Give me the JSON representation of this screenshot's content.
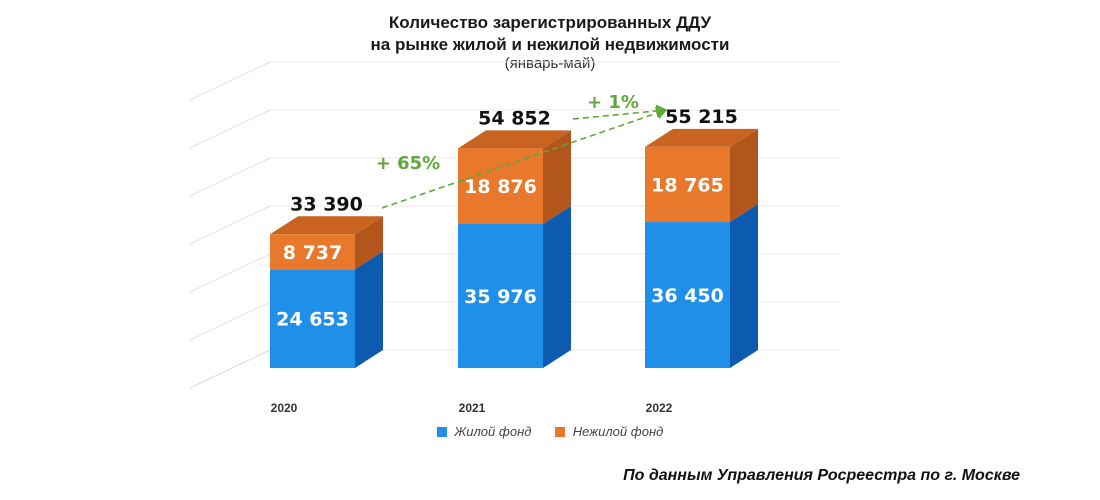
{
  "chart_data": {
    "type": "bar",
    "stacked": true,
    "title_line1": "Количество зарегистрированных ДДУ",
    "title_line2": "на рынке жилой и нежилой недвижимости",
    "subtitle": "(январь-май)",
    "categories": [
      "2020",
      "2021",
      "2022"
    ],
    "series": [
      {
        "name": "Жилой фонд",
        "color": "#1f8fe8",
        "labels": [
          "24 653",
          "35 976",
          "36 450"
        ],
        "values": [
          24653,
          35976,
          36450
        ]
      },
      {
        "name": "Нежилой фонд",
        "color": "#e8782b",
        "labels": [
          "8 737",
          "18 876",
          "18 765"
        ],
        "values": [
          8737,
          18876,
          18765
        ]
      }
    ],
    "totals": {
      "labels": [
        "33 390",
        "54 852",
        "55 215"
      ],
      "values": [
        33390,
        54852,
        55215
      ]
    },
    "growth": [
      {
        "from": "2020",
        "to": "2021",
        "label": "+ 65%"
      },
      {
        "from": "2021",
        "to": "2022",
        "label": "+ 1%"
      }
    ],
    "ylim": [
      0,
      60000
    ],
    "legend_position": "bottom",
    "grid": true
  },
  "source": "По данным Управления Росреестра по г. Москве"
}
